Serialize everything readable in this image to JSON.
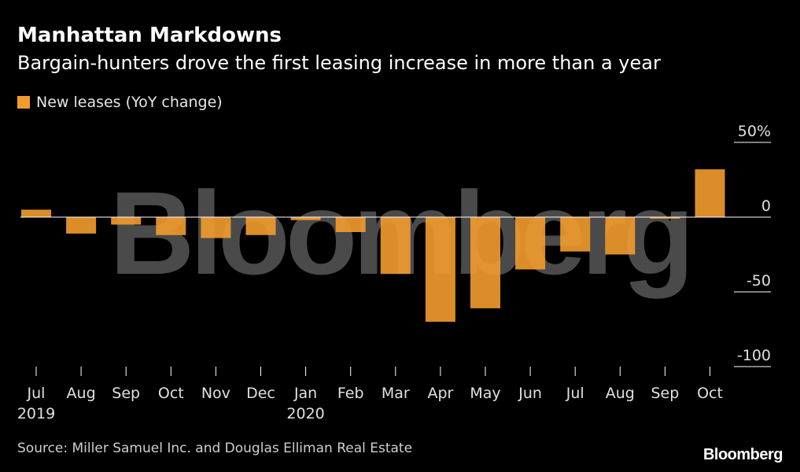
{
  "header": {
    "title": "Manhattan Markdowns",
    "subtitle": "Bargain-hunters drove the first leasing increase in more than a year"
  },
  "legend": {
    "label": "New leases (YoY change)",
    "color": "#f39c2e"
  },
  "watermark": "Bloomberg",
  "footer": {
    "source": "Source: Miller Samuel Inc. and Douglas Elliman Real Estate",
    "brand": "Bloomberg"
  },
  "chart_data": {
    "type": "bar",
    "categories": [
      "Jul",
      "Aug",
      "Sep",
      "Oct",
      "Nov",
      "Dec",
      "Jan",
      "Feb",
      "Mar",
      "Apr",
      "May",
      "Jun",
      "Jul",
      "Aug",
      "Sep",
      "Oct"
    ],
    "year_labels": [
      "2019",
      "",
      "",
      "",
      "",
      "",
      "2020",
      "",
      "",
      "",
      "",
      "",
      "",
      "",
      "",
      ""
    ],
    "series": [
      {
        "name": "New leases (YoY change)",
        "values": [
          5,
          -11,
          -5,
          -12,
          -14,
          -12,
          -2,
          -10,
          -38,
          -70,
          -61,
          -35,
          -23,
          -25,
          -1,
          32
        ],
        "color": "#f39c2e"
      }
    ],
    "y_ticks": [
      50,
      0,
      -50,
      -100
    ],
    "y_tick_labels": [
      "50%",
      "0",
      "-50",
      "-100"
    ],
    "ylim": [
      -100,
      50
    ],
    "zero_line": true,
    "legend_position": "top-left",
    "axis_position": "right"
  }
}
